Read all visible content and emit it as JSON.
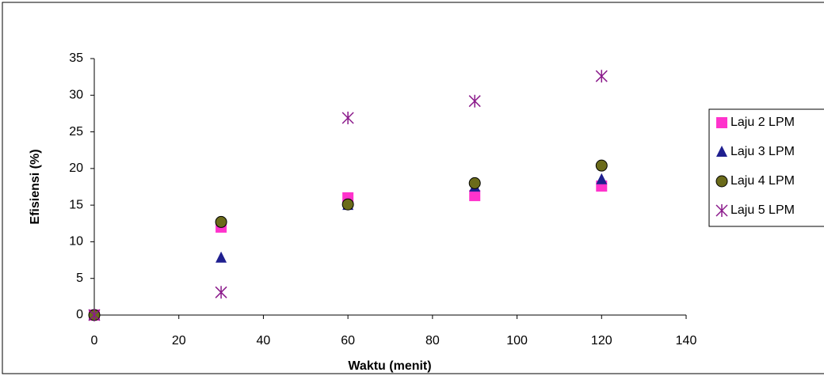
{
  "chart_data": {
    "type": "scatter",
    "x_label": "Waktu (menit)",
    "y_label": "Efisiensi (%)",
    "xlim": [
      0,
      140
    ],
    "xticks": [
      0,
      20,
      40,
      60,
      80,
      100,
      120,
      140
    ],
    "ylim": [
      0,
      35
    ],
    "yticks": [
      0,
      5,
      10,
      15,
      20,
      25,
      30,
      35
    ],
    "legend": "right",
    "series": [
      {
        "name": "Laju 2 LPM",
        "color": "#ff33cc",
        "marker": "square",
        "x": [
          0,
          30,
          60,
          90,
          120
        ],
        "values": [
          0,
          12,
          16,
          16.3,
          17.6
        ]
      },
      {
        "name": "Laju 3 LPM",
        "color": "#1f1f8f",
        "marker": "triangle",
        "x": [
          0,
          30,
          60,
          90,
          120
        ],
        "values": [
          0,
          7.8,
          15,
          17.5,
          18.5
        ]
      },
      {
        "name": "Laju 4 LPM",
        "color": "#6b6b1a",
        "marker": "circle",
        "x": [
          0,
          30,
          60,
          90,
          120
        ],
        "values": [
          0,
          12.7,
          15.1,
          18,
          20.4
        ]
      },
      {
        "name": "Laju 5 LPM",
        "color": "#8b1a8b",
        "marker": "asterisk",
        "x": [
          0,
          30,
          60,
          90,
          120
        ],
        "values": [
          0,
          3.1,
          26.9,
          29.2,
          32.6
        ]
      }
    ]
  }
}
